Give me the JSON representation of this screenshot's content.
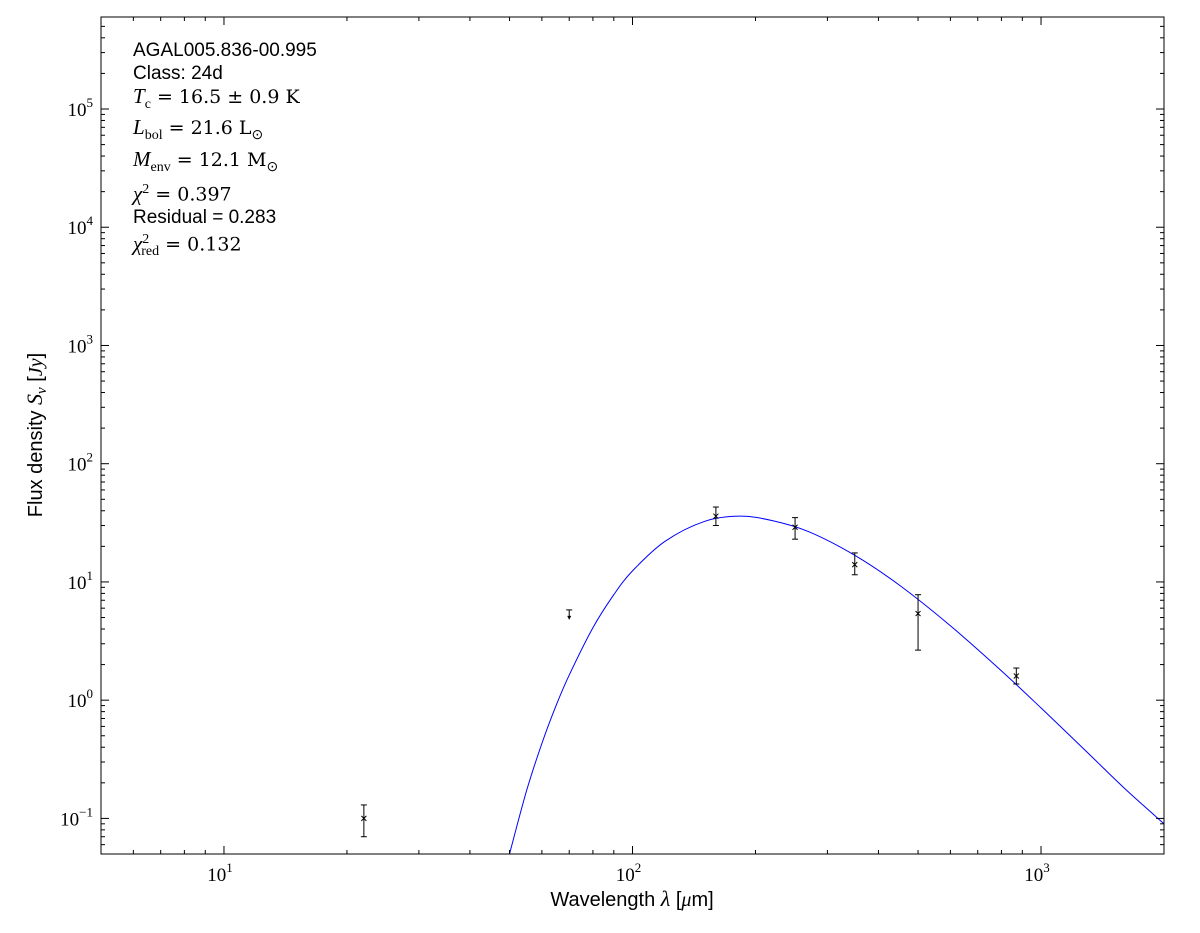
{
  "chart_data": {
    "type": "scatter",
    "xlabel": "Wavelength λ [μm]",
    "ylabel": "Flux density S_ν [Jy]",
    "xlabel_parts": {
      "pre": "Wavelength ",
      "sym": "λ",
      "post": " [",
      "mu": "μ",
      "unit": "m]"
    },
    "ylabel_parts": {
      "pre": "Flux density ",
      "sym": "S",
      "sub": "ν",
      "post": " [",
      "unit": "Jy",
      "close": "]"
    },
    "xscale": "log",
    "yscale": "log",
    "xlim": [
      5,
      2000
    ],
    "ylim": [
      0.05,
      600000
    ],
    "grid": false,
    "x_ticks": [
      {
        "base": "10",
        "exp": "1",
        "value": 10
      },
      {
        "base": "10",
        "exp": "2",
        "value": 100
      },
      {
        "base": "10",
        "exp": "3",
        "value": 1000
      }
    ],
    "y_ticks": [
      {
        "base": "10",
        "exp": "−1",
        "value": 0.1
      },
      {
        "base": "10",
        "exp": "0",
        "value": 1
      },
      {
        "base": "10",
        "exp": "1",
        "value": 10
      },
      {
        "base": "10",
        "exp": "2",
        "value": 100
      },
      {
        "base": "10",
        "exp": "3",
        "value": 1000
      },
      {
        "base": "10",
        "exp": "4",
        "value": 10000
      },
      {
        "base": "10",
        "exp": "5",
        "value": 100000
      }
    ],
    "points": [
      {
        "x": 22,
        "y": 0.1,
        "ylo": 0.07,
        "yhi": 0.13
      },
      {
        "x": 160,
        "y": 36,
        "ylo": 30,
        "yhi": 43
      },
      {
        "x": 250,
        "y": 29,
        "ylo": 23,
        "yhi": 35
      },
      {
        "x": 350,
        "y": 14,
        "ylo": 11.5,
        "yhi": 17.6
      },
      {
        "x": 500,
        "y": 5.4,
        "ylo": 2.65,
        "yhi": 7.8
      },
      {
        "x": 870,
        "y": 1.6,
        "ylo": 1.37,
        "yhi": 1.87
      }
    ],
    "upper_limits": [
      {
        "x": 70,
        "y": 5.8
      }
    ],
    "model_curve": {
      "color": "#0000ff",
      "x": [
        50,
        55,
        60,
        65,
        70,
        80,
        90,
        100,
        120,
        150,
        183,
        220,
        270,
        350,
        450,
        600,
        800,
        1000,
        1300,
        1600,
        2000
      ],
      "y": [
        0.05,
        0.17,
        0.43,
        0.9,
        1.63,
        4.1,
        7.8,
        12.4,
        22,
        32.5,
        36,
        33,
        26.6,
        16.8,
        9.4,
        4.26,
        1.77,
        0.86,
        0.36,
        0.18,
        0.09
      ]
    },
    "marker_color": "#000000"
  },
  "annotation": {
    "source": "AGAL005.836-00.995",
    "class": "Class: 24d",
    "tc": {
      "sym": "T",
      "sub": "c",
      "rest": " = 16.5 ± 0.9 K"
    },
    "lbol": {
      "sym": "L",
      "sub": "bol",
      "rest": " = 21.6 L",
      "rest_sub": "⊙"
    },
    "menv": {
      "sym": "M",
      "sub": "env",
      "rest": " = 12.1 M",
      "rest_sub": "⊙"
    },
    "chi2": {
      "sym": "χ",
      "sup": "2",
      "rest": " = 0.397"
    },
    "residual": "Residual = 0.283",
    "chi2red": {
      "sym": "χ",
      "sup": "2",
      "sub": "red",
      "rest": " = 0.132"
    }
  }
}
